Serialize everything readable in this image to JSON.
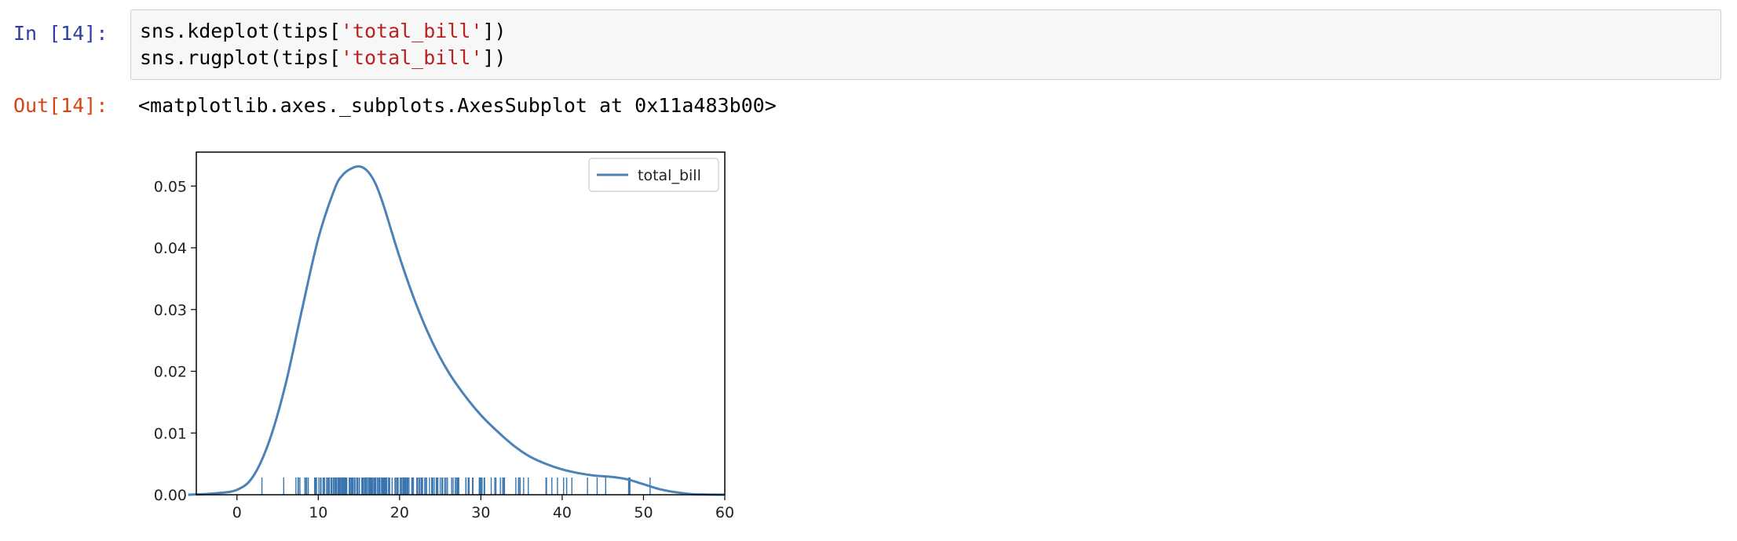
{
  "cell": {
    "in_prompt": "In [14]:",
    "code_lines": [
      {
        "pre": "sns.kdeplot(tips[",
        "str": "'total_bill'",
        "post": "])"
      },
      {
        "pre": "sns.rugplot(tips[",
        "str": "'total_bill'",
        "post": "])"
      }
    ],
    "out_prompt": "Out[14]:",
    "out_text": "<matplotlib.axes._subplots.AxesSubplot at 0x11a483b00>"
  },
  "colors": {
    "line": "#4c82b8",
    "rug": "#3a75b0"
  },
  "chart_data": {
    "type": "line",
    "xlim": [
      -5,
      60
    ],
    "ylim": [
      0,
      0.0555
    ],
    "xticks": [
      0,
      10,
      20,
      30,
      40,
      50,
      60
    ],
    "yticks": [
      0.0,
      0.01,
      0.02,
      0.03,
      0.04,
      0.05
    ],
    "ytick_labels": [
      "0.00",
      "0.01",
      "0.02",
      "0.03",
      "0.04",
      "0.05"
    ],
    "legend": "top-right",
    "series": [
      {
        "name": "total_bill",
        "x": [
          -6,
          -3,
          0,
          2,
          4,
          6,
          8,
          10,
          12,
          13,
          14,
          15,
          16,
          17,
          18,
          20,
          22,
          24,
          26,
          28,
          30,
          32,
          34,
          36,
          38,
          40,
          42,
          44,
          46,
          48,
          50,
          52,
          54,
          56,
          58,
          60
        ],
        "y": [
          0.0,
          0.0002,
          0.0008,
          0.003,
          0.0088,
          0.018,
          0.03,
          0.0415,
          0.0495,
          0.0518,
          0.0528,
          0.0532,
          0.0525,
          0.0505,
          0.047,
          0.0385,
          0.031,
          0.0248,
          0.0199,
          0.0161,
          0.0129,
          0.0103,
          0.008,
          0.0062,
          0.005,
          0.0041,
          0.0035,
          0.0031,
          0.0029,
          0.0025,
          0.0017,
          0.0009,
          0.0004,
          0.0001,
          3e-05,
          0.0
        ]
      }
    ],
    "rug": [
      3.07,
      5.75,
      7.25,
      7.51,
      7.56,
      7.74,
      8.35,
      8.51,
      8.52,
      8.58,
      8.77,
      9.55,
      9.6,
      9.68,
      9.78,
      10.07,
      10.27,
      10.33,
      10.34,
      10.59,
      10.63,
      10.77,
      11.02,
      11.17,
      11.24,
      11.38,
      11.59,
      11.61,
      11.69,
      11.87,
      12.02,
      12.16,
      12.26,
      12.43,
      12.46,
      12.48,
      12.54,
      12.6,
      12.66,
      12.74,
      12.76,
      12.9,
      13.0,
      13.03,
      13.13,
      13.16,
      13.27,
      13.28,
      13.37,
      13.39,
      13.42,
      13.51,
      13.81,
      13.94,
      14.07,
      14.15,
      14.26,
      14.31,
      14.48,
      14.52,
      14.73,
      14.78,
      14.83,
      15.01,
      15.04,
      15.06,
      15.36,
      15.38,
      15.42,
      15.48,
      15.53,
      15.69,
      15.77,
      15.81,
      15.95,
      15.98,
      16.0,
      16.04,
      16.21,
      16.27,
      16.29,
      16.31,
      16.4,
      16.45,
      16.47,
      16.49,
      16.58,
      16.66,
      16.82,
      16.93,
      16.97,
      16.99,
      17.07,
      17.26,
      17.29,
      17.31,
      17.46,
      17.47,
      17.51,
      17.59,
      17.78,
      17.81,
      17.82,
      17.89,
      17.92,
      18.04,
      18.15,
      18.24,
      18.26,
      18.28,
      18.29,
      18.35,
      18.43,
      18.64,
      18.69,
      18.71,
      18.78,
      19.08,
      19.44,
      19.49,
      19.65,
      19.77,
      19.81,
      19.82,
      20.08,
      20.23,
      20.27,
      20.29,
      20.45,
      20.49,
      20.53,
      20.65,
      20.69,
      20.76,
      20.9,
      20.92,
      21.01,
      21.16,
      21.5,
      21.58,
      21.7,
      22.12,
      22.23,
      22.42,
      22.49,
      22.67,
      22.75,
      22.76,
      22.82,
      23.1,
      23.17,
      23.33,
      23.68,
      23.95,
      24.01,
      24.06,
      24.08,
      24.27,
      24.52,
      24.55,
      24.59,
      24.71,
      25.0,
      25.21,
      25.28,
      25.29,
      25.56,
      25.71,
      25.89,
      26.41,
      26.59,
      26.86,
      26.88,
      27.05,
      27.18,
      27.2,
      27.28,
      28.15,
      28.17,
      28.44,
      28.55,
      28.97,
      29.03,
      29.8,
      29.85,
      29.93,
      30.06,
      30.14,
      30.4,
      30.46,
      31.27,
      31.71,
      31.85,
      32.4,
      32.68,
      32.83,
      32.9,
      34.3,
      34.63,
      34.65,
      34.81,
      34.83,
      35.26,
      35.83,
      38.01,
      38.07,
      38.73,
      39.42,
      40.17,
      40.55,
      41.19,
      43.11,
      44.3,
      45.35,
      48.17,
      48.27,
      48.33,
      50.81
    ]
  }
}
